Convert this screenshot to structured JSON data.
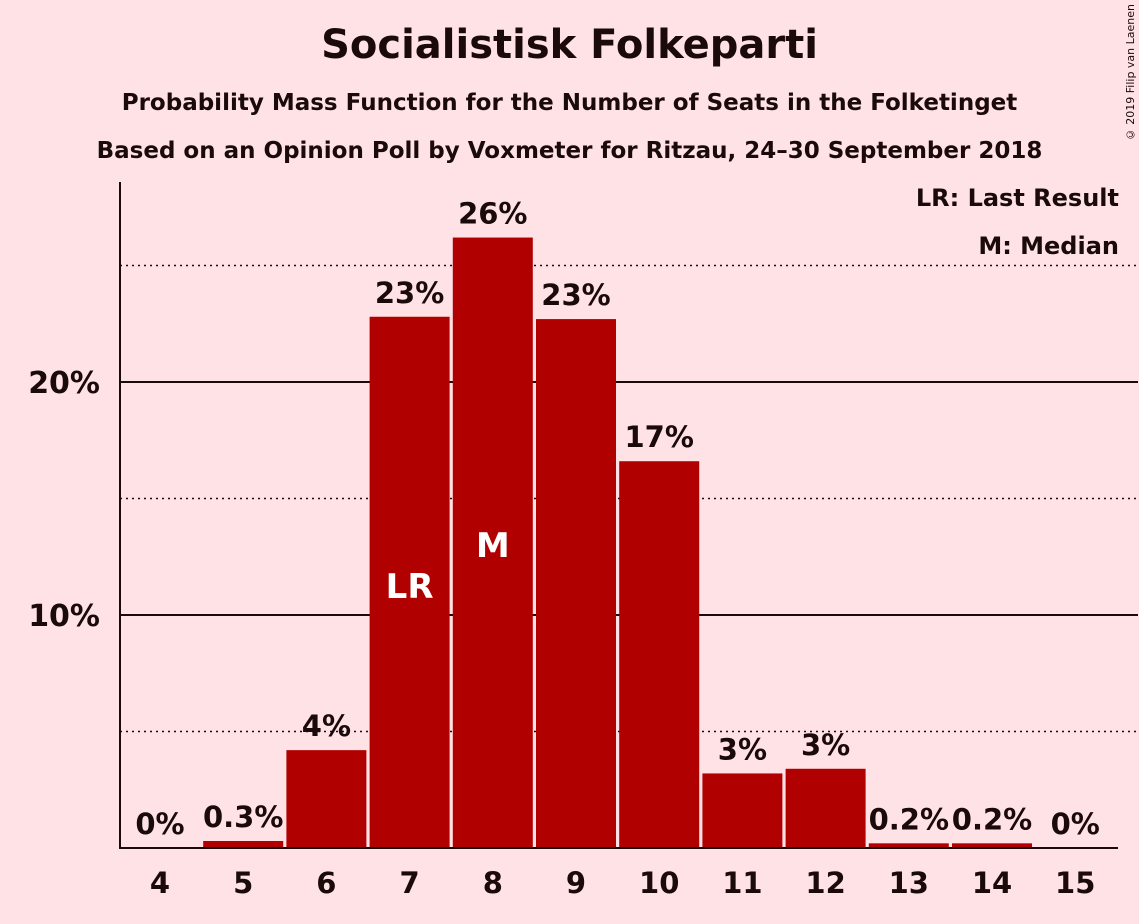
{
  "title": "Socialistisk Folkeparti",
  "subtitle": "Probability Mass Function for the Number of Seats in the Folketinget",
  "subtitle2": "Based on an Opinion Poll by Voxmeter for Ritzau, 24–30 September 2018",
  "copyright": "© 2019 Filip van Laenen",
  "legend": {
    "lr": "LR: Last Result",
    "m": "M: Median"
  },
  "colors": {
    "bar": "#B00000",
    "background": "#FFE2E6"
  },
  "chart_data": {
    "type": "bar",
    "title": "Socialistisk Folkeparti",
    "categories": [
      "4",
      "5",
      "6",
      "7",
      "8",
      "9",
      "10",
      "11",
      "12",
      "13",
      "14",
      "15"
    ],
    "values": [
      0,
      0.3,
      4.2,
      22.8,
      26.2,
      22.7,
      16.6,
      3.2,
      3.4,
      0.2,
      0.2,
      0
    ],
    "labels": [
      "0%",
      "0.3%",
      "4%",
      "23%",
      "26%",
      "23%",
      "17%",
      "3%",
      "3%",
      "0.2%",
      "0.2%",
      "0%"
    ],
    "bar_markers": {
      "7": "LR",
      "8": "M"
    },
    "yticks": [
      10,
      20
    ],
    "ytick_labels": [
      "10%",
      "20%"
    ],
    "ydotted": [
      5,
      15,
      25
    ],
    "ylim": [
      0,
      28.6
    ],
    "xlabel": "",
    "ylabel": "",
    "grid": true,
    "legend_position": "top-right"
  }
}
